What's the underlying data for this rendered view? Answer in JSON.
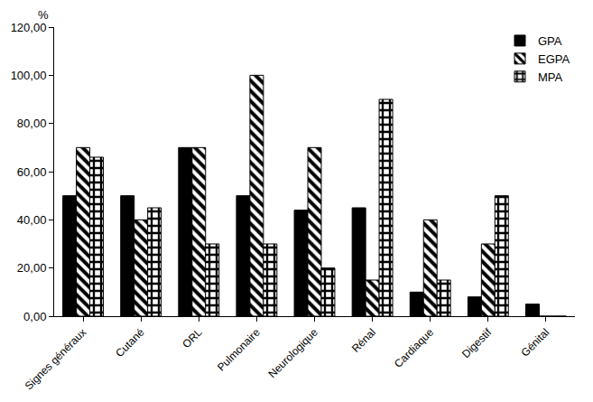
{
  "chart_data": {
    "type": "bar",
    "y_label": "%",
    "categories": [
      "Signes généraux",
      "Cutané",
      "ORL",
      "Pulmonaire",
      "Neurologique",
      "Rénal",
      "Cardiaque",
      "Digestif",
      "Génital"
    ],
    "series": [
      {
        "name": "GPA",
        "color": "#000000",
        "marker": "solid",
        "values": [
          50,
          50,
          70,
          50,
          44,
          45,
          10,
          8,
          5
        ]
      },
      {
        "name": "EGPA",
        "color": "#000000",
        "marker": "hatch",
        "values": [
          70,
          40,
          70,
          100,
          70,
          15,
          40,
          30,
          0
        ]
      },
      {
        "name": "MPA",
        "color": "#000000",
        "marker": "checker",
        "values": [
          66,
          45,
          30,
          30,
          20,
          90,
          15,
          50,
          0
        ]
      }
    ],
    "ylim": [
      0,
      120
    ],
    "yticks": [
      {
        "value": 0,
        "label": "0,00"
      },
      {
        "value": 20,
        "label": "20,00"
      },
      {
        "value": 40,
        "label": "40,00"
      },
      {
        "value": 60,
        "label": "60,00"
      },
      {
        "value": 80,
        "label": "80,00"
      },
      {
        "value": 100,
        "label": "100,00"
      },
      {
        "value": 120,
        "label": "120,00"
      }
    ],
    "grid": false,
    "legend": "top right"
  }
}
